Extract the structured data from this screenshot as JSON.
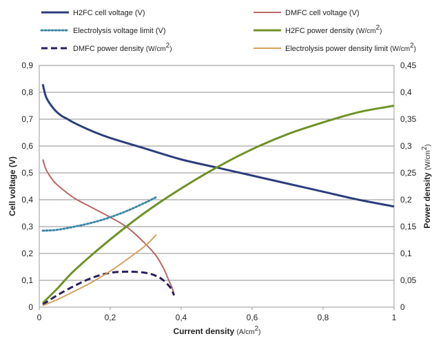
{
  "chart_data": {
    "type": "line",
    "xlabel": "Current density",
    "xlabel_unit": "(A/cm",
    "ylabel": "Cell voltage (V)",
    "y2label": "Power density",
    "y2label_unit": "(W/cm",
    "unit_sup": "2",
    "unit_close": ")",
    "xlim": [
      0,
      1
    ],
    "ylim": [
      0,
      0.9
    ],
    "y2lim": [
      0,
      0.45
    ],
    "grid": true,
    "legend_position": "top",
    "x_ticks": [
      "0",
      "0,2",
      "0,4",
      "0,6",
      "0,8",
      "1"
    ],
    "y_ticks": [
      "0",
      "0,1",
      "0,2",
      "0,3",
      "0,4",
      "0,5",
      "0,6",
      "0,7",
      "0,8",
      "0,9"
    ],
    "y2_ticks": [
      "0",
      "0,05",
      "0,1",
      "0,15",
      "0,2",
      "0,25",
      "0,3",
      "0,35",
      "0,4",
      "0,45"
    ],
    "series": [
      {
        "name": "H2FC cell voltage (V)",
        "unit_suffix": "",
        "axis": "left",
        "color": "#2b3d7c",
        "dash": "solid",
        "width": 3,
        "x": [
          0.01,
          0.02,
          0.04,
          0.06,
          0.08,
          0.1,
          0.15,
          0.2,
          0.3,
          0.4,
          0.5,
          0.6,
          0.7,
          0.8,
          0.9,
          1.0
        ],
        "y": [
          0.83,
          0.78,
          0.74,
          0.715,
          0.7,
          0.685,
          0.655,
          0.63,
          0.59,
          0.55,
          0.52,
          0.49,
          0.46,
          0.43,
          0.4,
          0.375
        ]
      },
      {
        "name": "DMFC cell voltage (V)",
        "unit_suffix": "",
        "axis": "left",
        "color": "#b86663",
        "dash": "solid",
        "width": 2,
        "x": [
          0.01,
          0.02,
          0.04,
          0.06,
          0.1,
          0.15,
          0.2,
          0.25,
          0.3,
          0.33,
          0.35,
          0.365,
          0.375,
          0.38
        ],
        "y": [
          0.55,
          0.51,
          0.47,
          0.445,
          0.405,
          0.37,
          0.335,
          0.295,
          0.235,
          0.19,
          0.145,
          0.1,
          0.07,
          0.045
        ]
      },
      {
        "name": "Electrolysis voltage limit (V)",
        "unit_suffix": "",
        "axis": "left",
        "color": "#3d87a8",
        "dash": "dotted",
        "width": 3,
        "x": [
          0.01,
          0.05,
          0.1,
          0.15,
          0.2,
          0.25,
          0.3,
          0.33
        ],
        "y": [
          0.285,
          0.288,
          0.3,
          0.315,
          0.335,
          0.36,
          0.39,
          0.41
        ]
      },
      {
        "name": "H2FC power density",
        "unit_suffix": "(W/cm",
        "axis": "right",
        "color": "#6e9226",
        "dash": "solid",
        "width": 3,
        "x": [
          0.01,
          0.05,
          0.1,
          0.2,
          0.3,
          0.4,
          0.5,
          0.6,
          0.7,
          0.8,
          0.9,
          1.0
        ],
        "y": [
          0.008,
          0.034,
          0.069,
          0.126,
          0.177,
          0.221,
          0.26,
          0.294,
          0.322,
          0.344,
          0.363,
          0.375
        ]
      },
      {
        "name": "DMFC power density",
        "unit_suffix": "(W/cm",
        "axis": "right",
        "color": "#2a1d5e",
        "dash": "dashed",
        "width": 3,
        "x": [
          0.01,
          0.05,
          0.1,
          0.15,
          0.2,
          0.25,
          0.3,
          0.33,
          0.35,
          0.37,
          0.38
        ],
        "y": [
          0.005,
          0.022,
          0.04,
          0.055,
          0.064,
          0.066,
          0.064,
          0.058,
          0.05,
          0.036,
          0.022
        ]
      },
      {
        "name": "Electrolysis power density limit",
        "unit_suffix": "(W/cm",
        "axis": "right",
        "color": "#d3a25a",
        "dash": "solid",
        "width": 2,
        "x": [
          0.01,
          0.05,
          0.1,
          0.15,
          0.2,
          0.25,
          0.3,
          0.33
        ],
        "y": [
          0.003,
          0.014,
          0.03,
          0.047,
          0.067,
          0.09,
          0.115,
          0.135
        ]
      }
    ]
  }
}
